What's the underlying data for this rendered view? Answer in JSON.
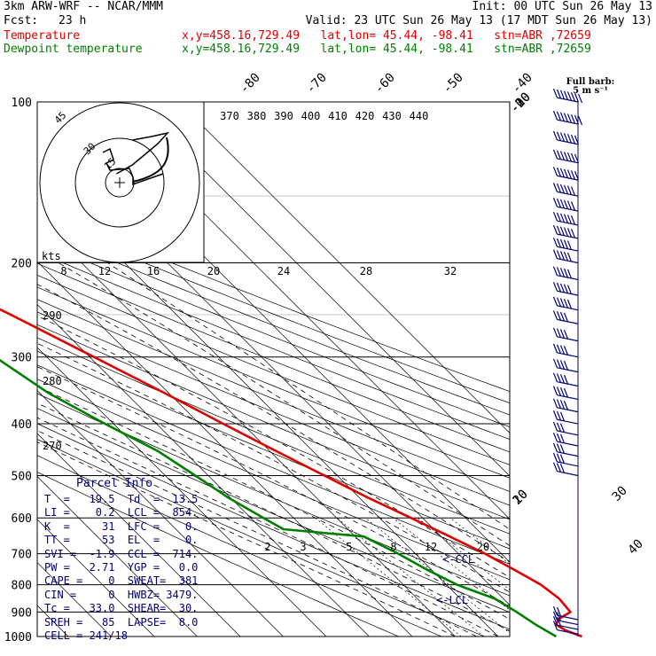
{
  "header": {
    "model": "3km ARW-WRF -- NCAR/MMM",
    "init": "Init: 00 UTC Sun 26 May 13",
    "fcst_label": "Fcst:",
    "fcst_value": "23 h",
    "valid": "Valid: 23 UTC Sun 26 May 13 (17 MDT Sun 26 May 13)",
    "temp_label": "Temperature",
    "temp_info": "x,y=458.16,729.49   lat,lon= 45.44, -98.41   stn=ABR ,72659",
    "dew_label": "Dewpoint temperature",
    "dew_info": "x,y=458.16,729.49   lat,lon= 45.44, -98.41   stn=ABR ,72659"
  },
  "colors": {
    "temperature": "#e00000",
    "dewpoint": "#008000",
    "wind": "#00007a",
    "grid": "#000000"
  },
  "chart_data": {
    "type": "line",
    "title": "",
    "ylabel": "",
    "y_scale": "log-pressure (skew-T)",
    "ylim": [
      1000,
      100
    ],
    "pressure_labels": [
      "100",
      "200",
      "300",
      "400",
      "500",
      "600",
      "700",
      "800",
      "900",
      "1000"
    ],
    "isotherm_labels": [
      "-80",
      "-70",
      "-60",
      "-50",
      "-40",
      "-30",
      "-20",
      "-10",
      "0",
      "10",
      "20",
      "30",
      "40"
    ],
    "isotherm_values": [
      -80,
      -70,
      -60,
      -50,
      -40,
      -30,
      -20,
      -10,
      0,
      10,
      20,
      30,
      40
    ],
    "theta_labels": [
      "370",
      "380",
      "390",
      "400",
      "410",
      "420",
      "430",
      "440"
    ],
    "theta_values": [
      370,
      380,
      390,
      400,
      410,
      420,
      430,
      440
    ],
    "dry_adiabat_labels": [
      "290",
      "280",
      "270"
    ],
    "dry_adiabat_values": [
      290,
      280,
      270
    ],
    "hodograph_ring_labels": [
      "8",
      "12",
      "16",
      "20",
      "24",
      "28",
      "32"
    ],
    "hodo_axis_label": "kts",
    "mixing_ratio_labels": [
      "2",
      "3",
      "5",
      "8",
      "12",
      "20"
    ],
    "mixing_ratio_values": [
      2,
      3,
      5,
      8,
      12,
      20
    ],
    "hodograph_labels": [
      "45",
      "30",
      "15"
    ],
    "full_barb_label": "Full barb:\n5 m s⁻¹",
    "lcl_marker": "<-LCL",
    "ccl_marker": "<-CCL",
    "series": [
      {
        "name": "Temperature",
        "color": "#e00000",
        "points": [
          [
            1000,
            19.5
          ],
          [
            975,
            17.2
          ],
          [
            950,
            16.2
          ],
          [
            925,
            18.5
          ],
          [
            900,
            22.5
          ],
          [
            850,
            23.0
          ],
          [
            800,
            22.0
          ],
          [
            750,
            19.3
          ],
          [
            700,
            16.2
          ],
          [
            650,
            12.0
          ],
          [
            600,
            7.3
          ],
          [
            550,
            2.0
          ],
          [
            500,
            -3.0
          ],
          [
            450,
            -8.5
          ],
          [
            400,
            -14.5
          ],
          [
            350,
            -21.0
          ],
          [
            300,
            -29.0
          ],
          [
            250,
            -38.5
          ],
          [
            225,
            -44.5
          ],
          [
            200,
            -52.5
          ],
          [
            180,
            -56.5
          ],
          [
            160,
            -58.0
          ],
          [
            140,
            -58.0
          ],
          [
            125,
            -59.5
          ],
          [
            110,
            -61.5
          ],
          [
            100,
            -63.0
          ]
        ]
      },
      {
        "name": "Dewpoint temperature",
        "color": "#008000",
        "points": [
          [
            1000,
            13.5
          ],
          [
            950,
            11.5
          ],
          [
            900,
            10.0
          ],
          [
            850,
            8.0
          ],
          [
            800,
            2.5
          ],
          [
            750,
            -1.0
          ],
          [
            700,
            -4.0
          ],
          [
            650,
            -8.0
          ],
          [
            630,
            -25.0
          ],
          [
            600,
            -27.0
          ],
          [
            550,
            -30.5
          ],
          [
            500,
            -33.0
          ],
          [
            450,
            -36.0
          ],
          [
            400,
            -42.0
          ],
          [
            350,
            -48.0
          ],
          [
            300,
            -52.0
          ],
          [
            250,
            -59.0
          ],
          [
            200,
            -67.0
          ],
          [
            160,
            -74.0
          ],
          [
            140,
            -81.0
          ],
          [
            120,
            -88.0
          ],
          [
            100,
            -95.0
          ]
        ]
      }
    ],
    "wind_barb_pressures": [
      100,
      110,
      120,
      130,
      140,
      150,
      160,
      170,
      180,
      190,
      200,
      215,
      230,
      245,
      260,
      280,
      300,
      320,
      340,
      360,
      380,
      400,
      420,
      440,
      460,
      480,
      500,
      930,
      950,
      970,
      990
    ],
    "wind_barb_speeds_ms": [
      40,
      40,
      35,
      35,
      35,
      30,
      30,
      30,
      30,
      25,
      25,
      25,
      25,
      25,
      20,
      20,
      20,
      20,
      20,
      20,
      20,
      15,
      15,
      15,
      15,
      15,
      15,
      10,
      10,
      10,
      5
    ],
    "hodograph_points": [
      [
        4,
        24
      ],
      [
        10,
        26
      ],
      [
        15,
        28
      ],
      [
        12,
        22
      ],
      [
        8,
        16
      ],
      [
        4,
        10
      ],
      [
        1,
        7
      ],
      [
        -1,
        5
      ]
    ]
  },
  "parcel": {
    "title": "Parcel Info",
    "rows": [
      "T  =   19.5  Td  =  13.5",
      "LI =    0.2  LCL =  854.",
      "K  =     31  LFC =    0.",
      "TT =     53  EL  =    0.",
      "SVI =  -1.9  CCL =  714.",
      "PW =   2.71  YGP =   0.0",
      "CAPE =    0  SWEAT=  381",
      "CIN =     0  HWBZ= 3479.",
      "Tc =   33.0  SHEAR=  30.",
      "SREH =   85  LAPSE=  8.0",
      "CELL = 241/18"
    ]
  }
}
